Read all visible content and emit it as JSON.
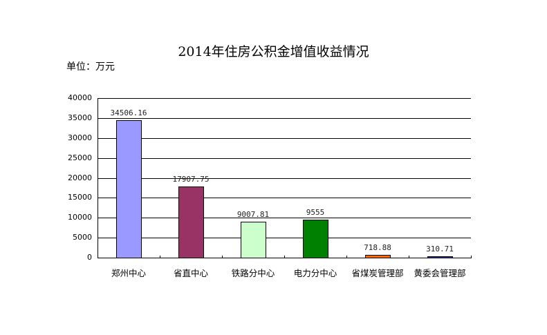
{
  "chart_data": {
    "type": "bar",
    "title": "2014年住房公积金增值收益情况",
    "unit": "单位：万元",
    "xlabel": "",
    "ylabel": "",
    "categories": [
      "郑州中心",
      "省直中心",
      "铁路分中心",
      "电力分中心",
      "省煤炭管理部",
      "黄委会管理部"
    ],
    "values": [
      34506.16,
      17907.75,
      9007.81,
      9555,
      718.88,
      310.71
    ],
    "value_labels": [
      "34506.16",
      "17907.75",
      "9007.81",
      "9555",
      "718.88",
      "310.71"
    ],
    "bar_colors": [
      "#9999ff",
      "#993366",
      "#ccffcc",
      "#008000",
      "#ff6600",
      "#333399"
    ],
    "ylim": [
      0,
      40000
    ],
    "yticks": [
      0,
      5000,
      10000,
      15000,
      20000,
      25000,
      30000,
      35000,
      40000
    ],
    "grid": true,
    "legend": "none"
  }
}
